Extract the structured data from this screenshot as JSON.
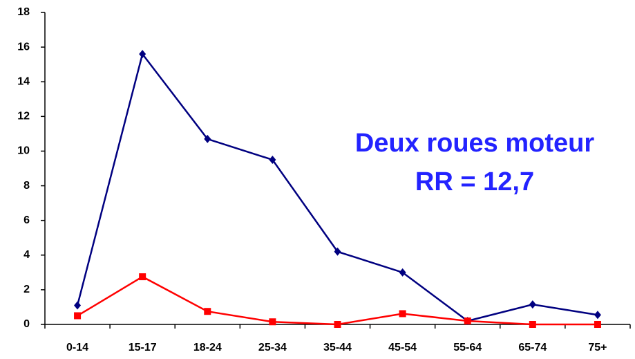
{
  "chart_data": {
    "type": "line",
    "categories": [
      "0-14",
      "15-17",
      "18-24",
      "25-34",
      "35-44",
      "45-54",
      "55-64",
      "65-74",
      "75+"
    ],
    "series": [
      {
        "color": "#000080",
        "marker": "diamond",
        "values": [
          1.1,
          15.6,
          10.7,
          9.5,
          4.2,
          3.0,
          0.2,
          1.15,
          0.55
        ]
      },
      {
        "color": "#ff0000",
        "marker": "square",
        "values": [
          0.5,
          2.75,
          0.75,
          0.15,
          0,
          0.62,
          0.2,
          0,
          0
        ]
      }
    ],
    "annotations": [
      "Deux roues moteur",
      "RR = 12,7"
    ],
    "ylim": [
      0,
      18
    ],
    "yticks": [
      0,
      2,
      4,
      6,
      8,
      10,
      12,
      14,
      16,
      18
    ],
    "grid": false
  }
}
